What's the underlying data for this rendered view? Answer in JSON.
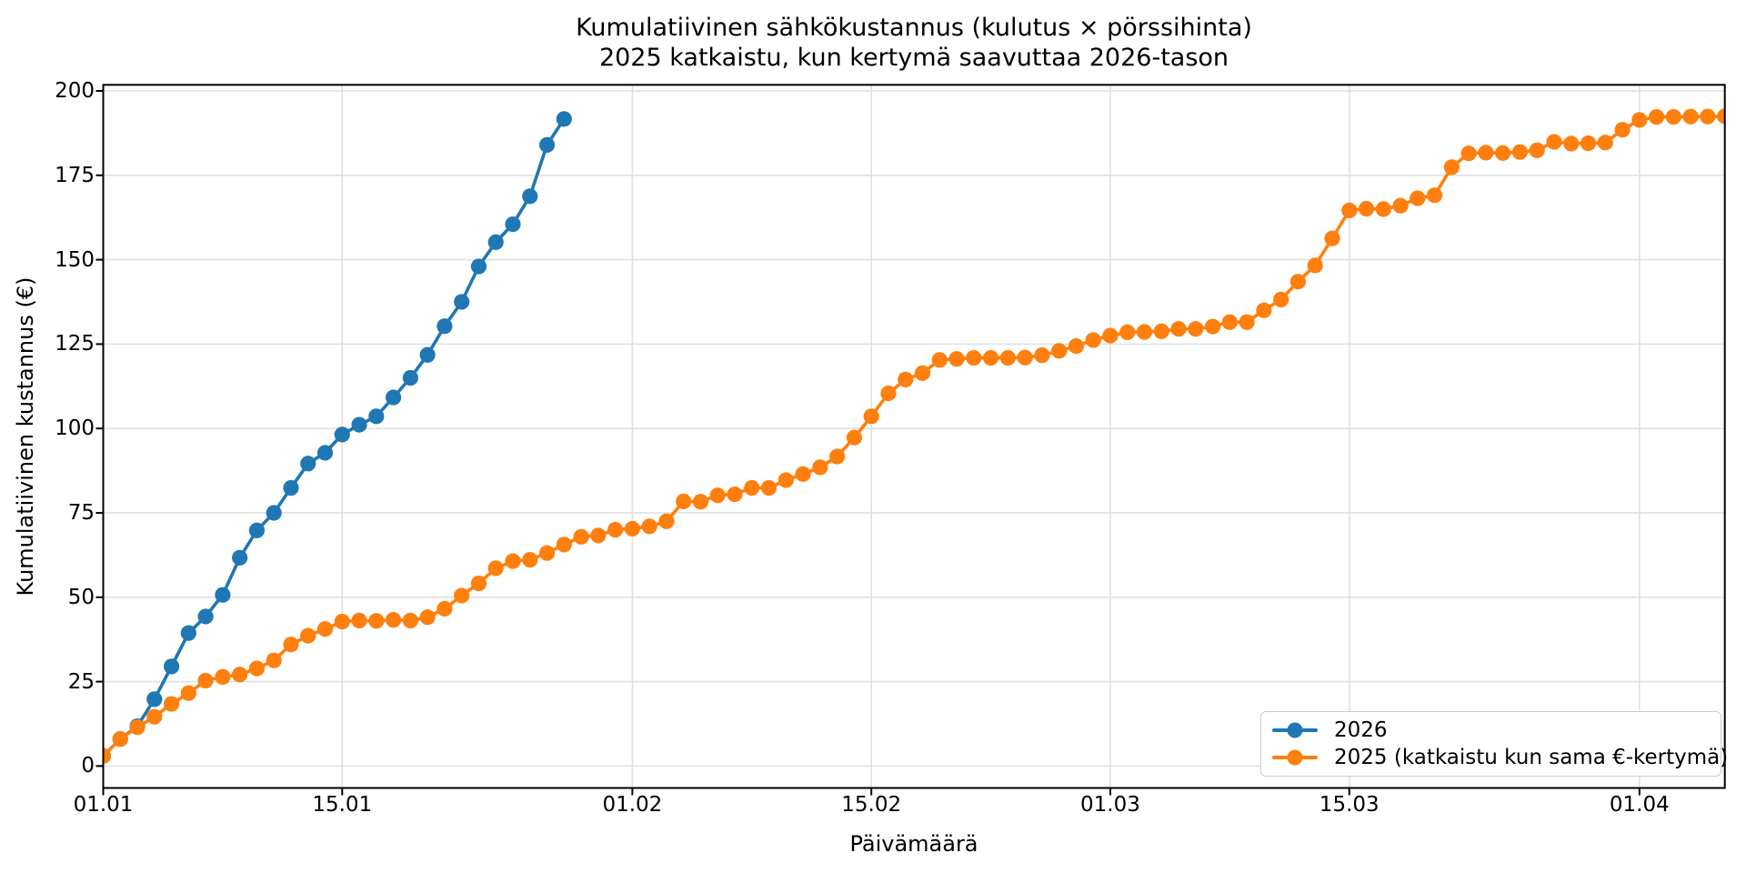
{
  "figure": {
    "title_line1": "Kumulatiivinen sähkökustannus (kulutus × pörssihinta)",
    "title_line2": "2025 katkaistu, kun kertymä saavuttaa 2026-tason",
    "xlabel": "Päivämäärä",
    "ylabel": "Kumulatiivinen kustannus (€)",
    "background": "#ffffff"
  },
  "chart_data": {
    "type": "line",
    "title": "Kumulatiivinen sähkökustannus (kulutus × pörssihinta)",
    "subtitle": "2025 katkaistu, kun kertymä saavuttaa 2026-tason",
    "xlabel": "Päivämäärä",
    "ylabel": "Kumulatiivinen kustannus (€)",
    "x_unit": "days since 01.01, one point per day",
    "xlim": [
      0,
      95
    ],
    "ylim": [
      -6.5,
      201.8
    ],
    "grid": true,
    "grid_color": "#e0e0e0",
    "spine_color": "#000000",
    "legend_position": "lower right",
    "x_ticks": [
      {
        "day": 0,
        "label": "01.01"
      },
      {
        "day": 14,
        "label": "15.01"
      },
      {
        "day": 31,
        "label": "01.02"
      },
      {
        "day": 45,
        "label": "15.02"
      },
      {
        "day": 59,
        "label": "01.03"
      },
      {
        "day": 73,
        "label": "15.03"
      },
      {
        "day": 90,
        "label": "01.04"
      }
    ],
    "y_ticks": [
      0,
      25,
      50,
      75,
      100,
      125,
      150,
      175,
      200
    ],
    "series": [
      {
        "name": "2026",
        "color": "#1f77b4",
        "start_day": 0,
        "start_date": "01.01",
        "end_date": "28.01",
        "values": [
          3,
          8,
          11.8,
          19.8,
          29.5,
          39.4,
          44.3,
          50.7,
          61.7,
          69.8,
          75,
          82.4,
          89.6,
          92.8,
          98.2,
          101.1,
          103.6,
          109.2,
          115,
          121.8,
          130.3,
          137.5,
          148,
          155.2,
          160.5,
          168.8,
          184,
          191.7
        ]
      },
      {
        "name": "2025 (katkaistu kun sama €-kertymä)",
        "color": "#ff7f0e",
        "start_day": 0,
        "start_date": "01.01",
        "end_date": "06.04",
        "values": [
          3,
          8,
          11.5,
          14.6,
          18.4,
          21.6,
          25.3,
          26.4,
          27.1,
          28.9,
          31.3,
          36,
          38.6,
          40.6,
          42.8,
          43.1,
          43,
          43.3,
          43.1,
          44.1,
          46.6,
          50.5,
          54.1,
          58.6,
          60.7,
          61.1,
          63.1,
          65.6,
          67.9,
          68.3,
          70,
          70.3,
          71,
          72.5,
          78.4,
          78.3,
          80.2,
          80.5,
          82.4,
          82.4,
          84.7,
          86.5,
          88.5,
          91.7,
          97.3,
          103.6,
          110.4,
          114.5,
          116.4,
          120.3,
          120.6,
          120.9,
          120.9,
          120.9,
          121,
          121.7,
          123,
          124.4,
          126.2,
          127.5,
          128.5,
          128.6,
          128.8,
          129.5,
          129.5,
          130.2,
          131.5,
          131.5,
          135,
          138.2,
          143.5,
          148.3,
          156.3,
          164.6,
          165.1,
          165,
          166,
          168.2,
          169.1,
          177.4,
          181.5,
          181.7,
          181.6,
          181.9,
          182.4,
          184.9,
          184.4,
          184.5,
          184.7,
          188.5,
          191.4,
          192.3,
          192.3,
          192.4,
          192.4,
          192.5
        ]
      }
    ]
  }
}
